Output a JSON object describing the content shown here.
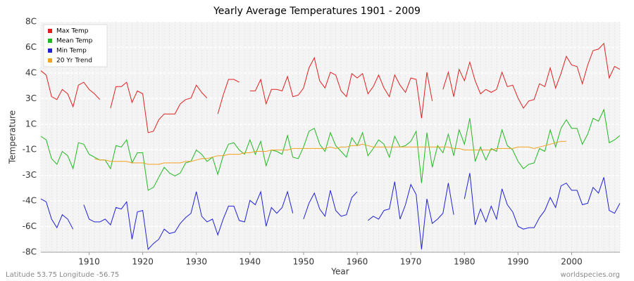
{
  "chart_data": {
    "type": "line",
    "title": "Yearly Average Temperatures 1901 - 2009",
    "x_label": "Year",
    "y_label": "Temperature",
    "location": "Latitude 53.75 Longitude -56.75",
    "source": "worldspecies.org",
    "legend": "upper left",
    "grid": true,
    "xlim": [
      1901,
      2009
    ],
    "xticks": [
      1910,
      1920,
      1930,
      1940,
      1950,
      1960,
      1970,
      1980,
      1990,
      2000
    ],
    "ylim": [
      -8,
      8
    ],
    "yticks": [
      {
        "value": -8,
        "label": "-8C"
      },
      {
        "value": -6.22,
        "label": "-6C"
      },
      {
        "value": -4.44,
        "label": "-4C"
      },
      {
        "value": -2.67,
        "label": "-3C"
      },
      {
        "value": -0.89,
        "label": "-1C"
      },
      {
        "value": 0.89,
        "label": "1C"
      },
      {
        "value": 2.67,
        "label": "3C"
      },
      {
        "value": 4.44,
        "label": "4C"
      },
      {
        "value": 6.22,
        "label": "6C"
      },
      {
        "value": 8,
        "label": "8C"
      }
    ],
    "x": [
      1901,
      1902,
      1903,
      1904,
      1905,
      1906,
      1907,
      1908,
      1909,
      1910,
      1911,
      1912,
      1913,
      1914,
      1915,
      1916,
      1917,
      1918,
      1919,
      1920,
      1921,
      1922,
      1923,
      1924,
      1925,
      1926,
      1927,
      1928,
      1929,
      1930,
      1931,
      1932,
      1933,
      1934,
      1935,
      1936,
      1937,
      1938,
      1939,
      1940,
      1941,
      1942,
      1943,
      1944,
      1945,
      1946,
      1947,
      1948,
      1949,
      1950,
      1951,
      1952,
      1953,
      1954,
      1955,
      1956,
      1957,
      1958,
      1959,
      1960,
      1961,
      1962,
      1963,
      1964,
      1965,
      1966,
      1967,
      1968,
      1969,
      1970,
      1971,
      1972,
      1973,
      1974,
      1975,
      1976,
      1977,
      1978,
      1979,
      1980,
      1981,
      1982,
      1983,
      1984,
      1985,
      1986,
      1987,
      1988,
      1989,
      1990,
      1991,
      1992,
      1993,
      1994,
      1995,
      1996,
      1997,
      1998,
      1999,
      2000,
      2001,
      2002,
      2003,
      2004,
      2005,
      2006,
      2007,
      2008,
      2009
    ],
    "series": [
      {
        "name": "Max Temp",
        "color": "#e02020",
        "values": [
          4.6,
          4.3,
          2.8,
          2.6,
          3.3,
          3.0,
          2.1,
          3.6,
          3.8,
          3.3,
          3.0,
          2.6,
          null,
          2.0,
          3.5,
          3.5,
          3.8,
          2.4,
          3.2,
          3.0,
          0.3,
          0.4,
          1.2,
          1.6,
          1.6,
          1.6,
          2.3,
          2.6,
          2.7,
          3.6,
          3.1,
          2.7,
          null,
          1.6,
          2.9,
          4.0,
          4.0,
          3.8,
          null,
          3.2,
          3.2,
          4.0,
          2.3,
          3.3,
          3.3,
          3.2,
          4.2,
          2.8,
          2.9,
          3.4,
          4.8,
          5.5,
          3.9,
          3.4,
          4.5,
          4.3,
          3.2,
          2.8,
          4.4,
          4.1,
          4.4,
          3.0,
          3.5,
          4.3,
          3.4,
          2.8,
          4.3,
          3.6,
          3.1,
          4.1,
          4.0,
          1.3,
          4.5,
          2.5,
          null,
          3.3,
          4.5,
          2.8,
          4.7,
          3.9,
          5.2,
          3.9,
          3.0,
          3.3,
          3.1,
          3.3,
          4.5,
          3.5,
          3.6,
          2.7,
          2.0,
          2.5,
          2.6,
          3.7,
          3.5,
          4.8,
          3.4,
          4.4,
          5.6,
          5.0,
          4.9,
          3.7,
          5.0,
          6.0,
          6.1,
          6.5,
          4.1,
          4.9,
          4.7
        ]
      },
      {
        "name": "Mean Temp",
        "color": "#22b822",
        "values": [
          0.05,
          -0.2,
          -1.5,
          -1.9,
          -1.0,
          -1.3,
          -2.2,
          -0.4,
          -0.5,
          -1.2,
          -1.4,
          -1.6,
          -1.6,
          -2.2,
          -0.6,
          -0.7,
          -0.2,
          -1.8,
          -1.1,
          -1.1,
          -3.7,
          -3.5,
          -2.8,
          -2.1,
          -2.5,
          -2.7,
          -2.5,
          -1.8,
          -1.7,
          -0.9,
          -1.2,
          -1.7,
          -1.4,
          -2.6,
          -1.3,
          -0.5,
          -0.4,
          -0.9,
          -1.2,
          -0.2,
          -1.2,
          -0.3,
          -2.0,
          -0.9,
          -1.0,
          -1.2,
          0.1,
          -1.4,
          -1.5,
          -0.7,
          0.4,
          0.6,
          -0.5,
          -1.0,
          0.3,
          -0.6,
          -1.0,
          -1.4,
          -0.05,
          -0.6,
          0.3,
          -1.3,
          -0.8,
          -0.2,
          -0.5,
          -1.4,
          0.05,
          -0.7,
          -0.6,
          -0.3,
          0.4,
          -3.2,
          0.3,
          -2.1,
          -0.6,
          -1.1,
          0.2,
          -1.3,
          0.5,
          -0.5,
          1.3,
          -1.7,
          -0.7,
          -1.6,
          -0.8,
          -1.0,
          0.5,
          -0.6,
          -0.9,
          -1.7,
          -2.2,
          -1.9,
          -1.8,
          -0.8,
          -1.0,
          0.5,
          -0.7,
          0.6,
          1.2,
          0.6,
          0.6,
          -0.5,
          0.2,
          1.3,
          1.1,
          1.9,
          -0.4,
          -0.2,
          0.1
        ]
      },
      {
        "name": "Min Temp",
        "color": "#2020d8",
        "values": [
          -4.3,
          -4.5,
          -5.7,
          -6.3,
          -5.4,
          -5.7,
          -6.4,
          null,
          -4.7,
          -5.7,
          -5.9,
          -5.9,
          -5.7,
          -6.1,
          -4.9,
          -5.0,
          -4.5,
          -7.1,
          -5.2,
          -5.1,
          -7.8,
          -7.4,
          -7.1,
          -6.4,
          -6.7,
          -6.6,
          -6.0,
          -5.6,
          -5.3,
          -3.8,
          -5.5,
          -5.9,
          -5.7,
          -6.8,
          -5.7,
          -4.8,
          -4.8,
          -5.8,
          -5.9,
          -4.4,
          -4.7,
          -3.8,
          -6.2,
          -4.9,
          -5.3,
          -4.9,
          -3.8,
          -5.3,
          null,
          -5.7,
          -4.6,
          -3.9,
          -5.0,
          -5.5,
          -3.7,
          -5.1,
          -5.5,
          -5.4,
          -4.2,
          -3.8,
          null,
          -5.8,
          -5.5,
          -5.7,
          -5.1,
          -5.0,
          -3.1,
          -5.7,
          -4.7,
          -3.3,
          -4.0,
          -7.8,
          -4.3,
          -6.0,
          -5.7,
          -5.3,
          -3.2,
          -5.4,
          null,
          -4.3,
          -2.5,
          -6.1,
          -5.0,
          -5.9,
          -4.8,
          -5.7,
          -3.6,
          -4.7,
          -5.2,
          -6.2,
          -6.4,
          -6.3,
          -6.3,
          -5.6,
          -5.1,
          -4.2,
          -4.9,
          -3.4,
          -3.2,
          -3.7,
          -3.7,
          -4.7,
          -4.6,
          -3.5,
          -3.9,
          -2.8,
          -5.1,
          -5.3,
          -4.6
        ]
      },
      {
        "name": "20 Yr Trend",
        "color": "#f5a020",
        "values": [
          null,
          null,
          null,
          null,
          null,
          null,
          null,
          null,
          null,
          null,
          -1.5,
          -1.6,
          -1.6,
          -1.7,
          -1.7,
          -1.7,
          -1.7,
          -1.8,
          -1.8,
          -1.8,
          -1.9,
          -1.9,
          -1.9,
          -1.8,
          -1.8,
          -1.8,
          -1.8,
          -1.7,
          -1.7,
          -1.6,
          -1.5,
          -1.5,
          -1.4,
          -1.3,
          -1.3,
          -1.2,
          -1.2,
          -1.2,
          -1.1,
          -1.1,
          -1.0,
          -1.0,
          -1.0,
          -0.9,
          -0.9,
          -0.9,
          -0.9,
          -0.8,
          -0.8,
          -0.8,
          -0.8,
          -0.8,
          -0.8,
          -0.8,
          -0.7,
          -0.8,
          -0.7,
          -0.7,
          -0.6,
          -0.6,
          -0.5,
          -0.6,
          -0.7,
          -0.7,
          -0.7,
          -0.7,
          -0.7,
          -0.7,
          -0.7,
          -0.7,
          -0.7,
          -0.7,
          -0.7,
          -0.7,
          -0.7,
          -0.7,
          -0.7,
          -0.8,
          -0.8,
          -0.9,
          -0.9,
          -0.9,
          -0.9,
          -0.9,
          -0.9,
          -0.8,
          -0.8,
          -0.8,
          -0.8,
          -0.7,
          -0.7,
          -0.7,
          -0.8,
          -0.7,
          -0.6,
          -0.5,
          -0.4,
          -0.3,
          -0.3,
          null,
          null,
          null,
          null,
          null,
          null,
          null,
          null,
          null,
          null
        ]
      }
    ]
  }
}
